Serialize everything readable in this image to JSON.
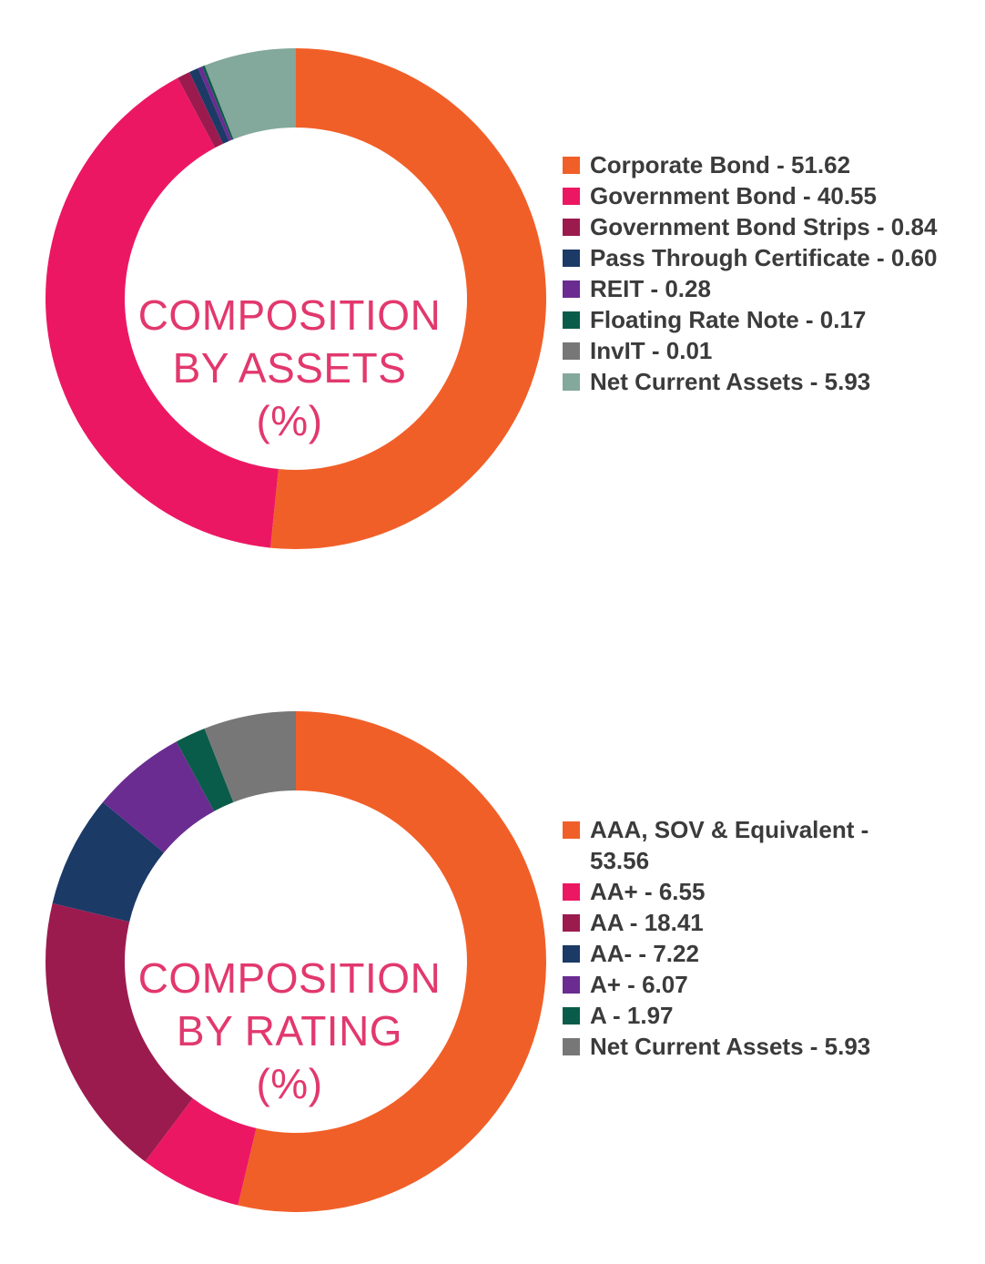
{
  "chart_data": [
    {
      "type": "pie",
      "donut": true,
      "title": "COMPOSITION BY ASSETS (%)",
      "title_lines": [
        "COMPOSITION",
        "BY ASSETS",
        "(%)"
      ],
      "labels": [
        "Corporate Bond - 51.62",
        "Government Bond - 40.55",
        "Government Bond Strips - 0.84",
        "Pass Through Certificate - 0.60",
        "REIT - 0.28",
        "Floating Rate Note - 0.17",
        "InvIT - 0.01",
        "Net Current Assets - 5.93"
      ],
      "values": [
        51.62,
        40.55,
        0.84,
        0.6,
        0.28,
        0.17,
        0.01,
        5.93
      ],
      "colors": [
        "#f15f28",
        "#ec1763",
        "#9c1b4f",
        "#1b3a66",
        "#6a2c91",
        "#0a5c4a",
        "#777777",
        "#83a89c"
      ],
      "legend_position": "right"
    },
    {
      "type": "pie",
      "donut": true,
      "title": "COMPOSITION BY RATING (%)",
      "title_lines": [
        "COMPOSITION",
        "BY RATING",
        "(%)"
      ],
      "labels": [
        "AAA, SOV & Equivalent - 53.56",
        "AA+ - 6.55",
        "AA - 18.41",
        "AA- - 7.22",
        "A+ - 6.07",
        "A - 1.97",
        "Net Current Assets - 5.93"
      ],
      "values": [
        53.56,
        6.55,
        18.41,
        7.22,
        6.07,
        1.97,
        5.93
      ],
      "colors": [
        "#f15f28",
        "#ec1763",
        "#9c1b4f",
        "#1b3a66",
        "#6a2c91",
        "#0a5c4a",
        "#777777"
      ],
      "legend_position": "right"
    }
  ]
}
